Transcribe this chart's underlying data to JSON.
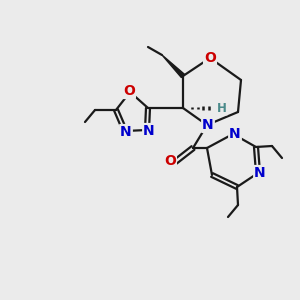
{
  "bg_color": "#ebebeb",
  "atom_colors": {
    "N": "#0000cc",
    "O": "#cc0000",
    "H": "#4a8a8a"
  },
  "bond_color": "#1a1a1a",
  "figsize": [
    3.0,
    3.0
  ],
  "dpi": 100
}
